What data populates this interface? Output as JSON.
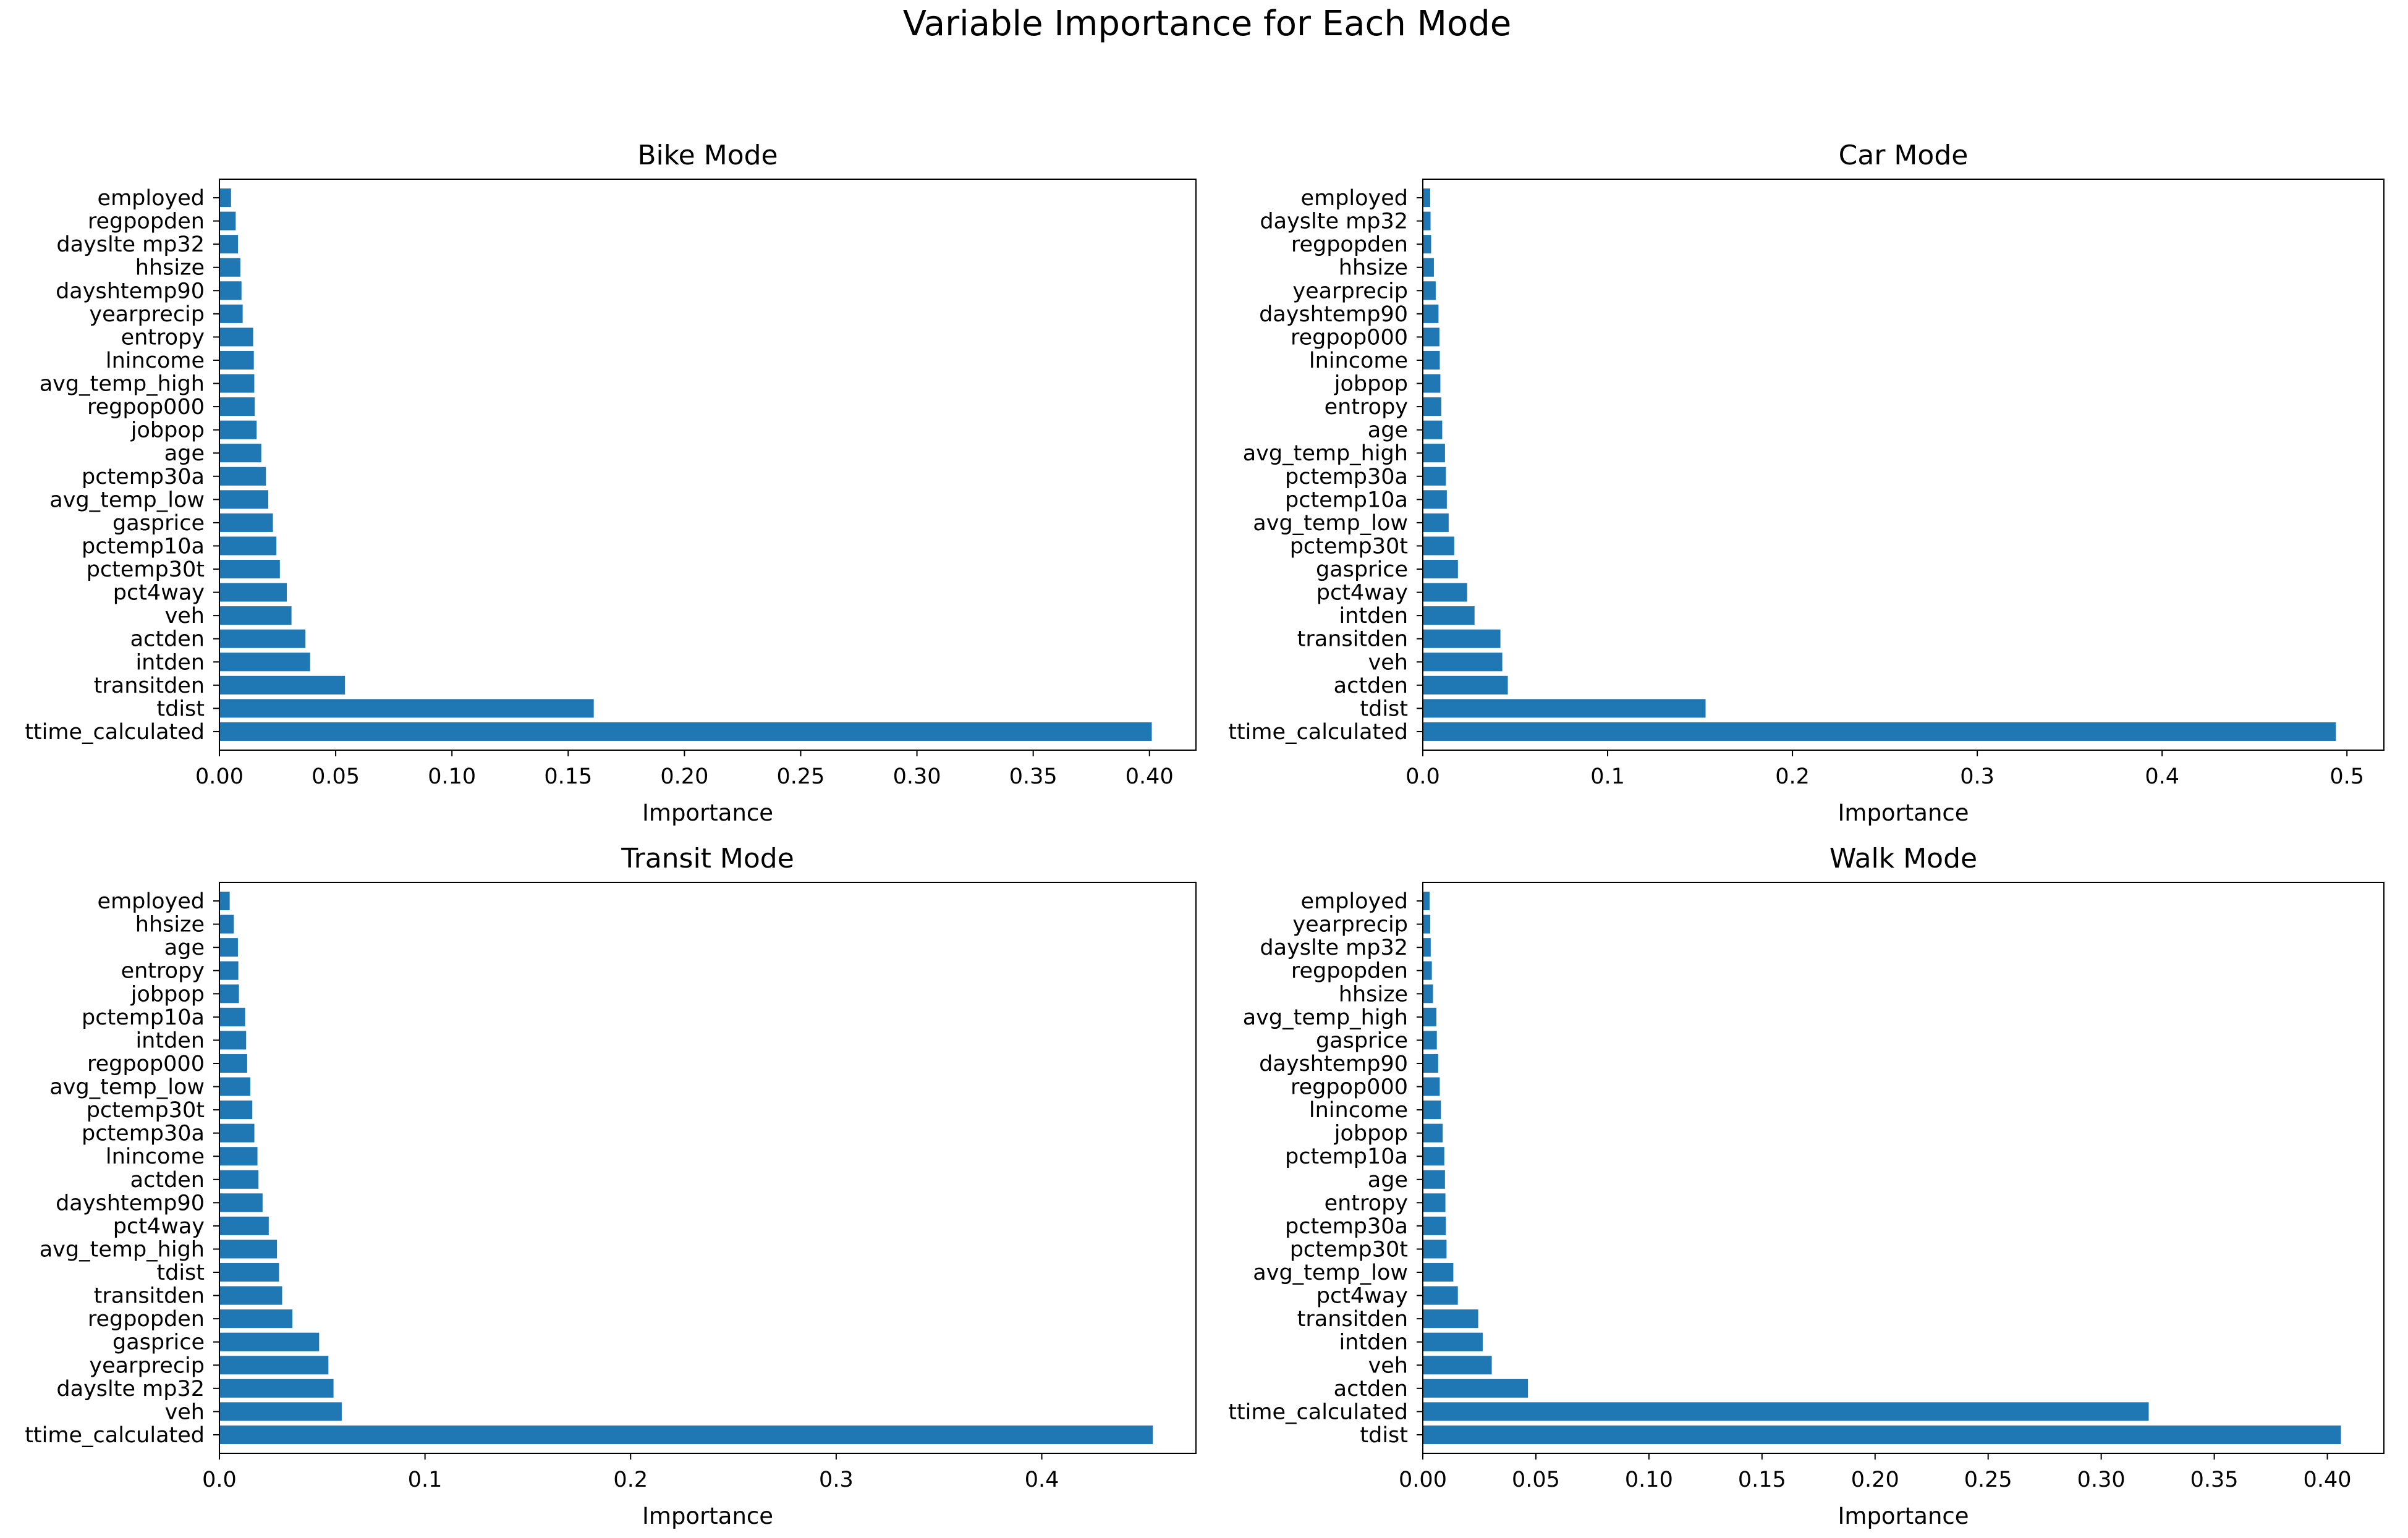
{
  "figure_title": "Variable Importance for Each Mode",
  "colors": {
    "bar": "#1f77b4",
    "axis": "#000000",
    "background": "#ffffff"
  },
  "chart_data": [
    {
      "type": "bar",
      "orientation": "horizontal",
      "title": "Bike Mode",
      "xlabel": "Importance",
      "ylabel": "",
      "xlim": [
        0,
        0.42
      ],
      "xticks": [
        0.0,
        0.05,
        0.1,
        0.15,
        0.2,
        0.25,
        0.3,
        0.35,
        0.4
      ],
      "xtick_labels": [
        "0.00",
        "0.05",
        "0.10",
        "0.15",
        "0.20",
        "0.25",
        "0.30",
        "0.35",
        "0.40"
      ],
      "categories": [
        "employed",
        "regpopden",
        "dayslte mp32",
        "hhsize",
        "dayshtemp90",
        "yearprecip",
        "entropy",
        "lnincome",
        "avg_temp_high",
        "regpop000",
        "jobpop",
        "age",
        "pctemp30a",
        "avg_temp_low",
        "gasprice",
        "pctemp10a",
        "pctemp30t",
        "pct4way",
        "veh",
        "actden",
        "intden",
        "transitden",
        "tdist",
        "ttime_calculated"
      ],
      "values": [
        0.005,
        0.007,
        0.008,
        0.009,
        0.0095,
        0.01,
        0.0145,
        0.0148,
        0.015,
        0.0152,
        0.016,
        0.018,
        0.02,
        0.021,
        0.023,
        0.0245,
        0.026,
        0.029,
        0.031,
        0.037,
        0.039,
        0.054,
        0.161,
        0.401
      ]
    },
    {
      "type": "bar",
      "orientation": "horizontal",
      "title": "Car Mode",
      "xlabel": "Importance",
      "ylabel": "",
      "xlim": [
        0,
        0.52
      ],
      "xticks": [
        0.0,
        0.1,
        0.2,
        0.3,
        0.4,
        0.5
      ],
      "xtick_labels": [
        "0.0",
        "0.1",
        "0.2",
        "0.3",
        "0.4",
        "0.5"
      ],
      "categories": [
        "employed",
        "dayslte mp32",
        "regpopden",
        "hhsize",
        "yearprecip",
        "dayshtemp90",
        "regpop000",
        "lnincome",
        "jobpop",
        "entropy",
        "age",
        "avg_temp_high",
        "pctemp30a",
        "pctemp10a",
        "avg_temp_low",
        "pctemp30t",
        "gasprice",
        "pct4way",
        "intden",
        "transitden",
        "veh",
        "actden",
        "tdist",
        "ttime_calculated"
      ],
      "values": [
        0.004,
        0.0042,
        0.0045,
        0.006,
        0.007,
        0.0085,
        0.009,
        0.0092,
        0.0095,
        0.01,
        0.0105,
        0.012,
        0.0125,
        0.013,
        0.014,
        0.017,
        0.019,
        0.024,
        0.028,
        0.042,
        0.043,
        0.046,
        0.153,
        0.494
      ]
    },
    {
      "type": "bar",
      "orientation": "horizontal",
      "title": "Transit Mode",
      "xlabel": "Importance",
      "ylabel": "",
      "xlim": [
        0,
        0.475
      ],
      "xticks": [
        0.0,
        0.1,
        0.2,
        0.3,
        0.4
      ],
      "xtick_labels": [
        "0.0",
        "0.1",
        "0.2",
        "0.3",
        "0.4"
      ],
      "categories": [
        "employed",
        "hhsize",
        "age",
        "entropy",
        "jobpop",
        "pctemp10a",
        "intden",
        "regpop000",
        "avg_temp_low",
        "pctemp30t",
        "pctemp30a",
        "lnincome",
        "actden",
        "dayshtemp90",
        "pct4way",
        "avg_temp_high",
        "tdist",
        "transitden",
        "regpopden",
        "gasprice",
        "yearprecip",
        "dayslte mp32",
        "veh",
        "ttime_calculated"
      ],
      "values": [
        0.005,
        0.007,
        0.009,
        0.0092,
        0.0095,
        0.0125,
        0.013,
        0.0135,
        0.015,
        0.016,
        0.017,
        0.0185,
        0.019,
        0.021,
        0.024,
        0.028,
        0.029,
        0.0305,
        0.0355,
        0.0485,
        0.053,
        0.0555,
        0.0595,
        0.454
      ]
    },
    {
      "type": "bar",
      "orientation": "horizontal",
      "title": "Walk Mode",
      "xlabel": "Importance",
      "ylabel": "",
      "xlim": [
        0,
        0.425
      ],
      "xticks": [
        0.0,
        0.05,
        0.1,
        0.15,
        0.2,
        0.25,
        0.3,
        0.35,
        0.4
      ],
      "xtick_labels": [
        "0.00",
        "0.05",
        "0.10",
        "0.15",
        "0.20",
        "0.25",
        "0.30",
        "0.35",
        "0.40"
      ],
      "categories": [
        "employed",
        "yearprecip",
        "dayslte mp32",
        "regpopden",
        "hhsize",
        "avg_temp_high",
        "gasprice",
        "dayshtemp90",
        "regpop000",
        "lnincome",
        "jobpop",
        "pctemp10a",
        "age",
        "entropy",
        "pctemp30a",
        "pctemp30t",
        "avg_temp_low",
        "pct4way",
        "transitden",
        "intden",
        "veh",
        "actden",
        "ttime_calculated",
        "tdist"
      ],
      "values": [
        0.003,
        0.0033,
        0.0035,
        0.004,
        0.0045,
        0.006,
        0.0062,
        0.0068,
        0.0075,
        0.008,
        0.0088,
        0.0095,
        0.0098,
        0.01,
        0.0102,
        0.0105,
        0.0135,
        0.0155,
        0.0245,
        0.0265,
        0.0305,
        0.0465,
        0.321,
        0.406
      ]
    }
  ]
}
